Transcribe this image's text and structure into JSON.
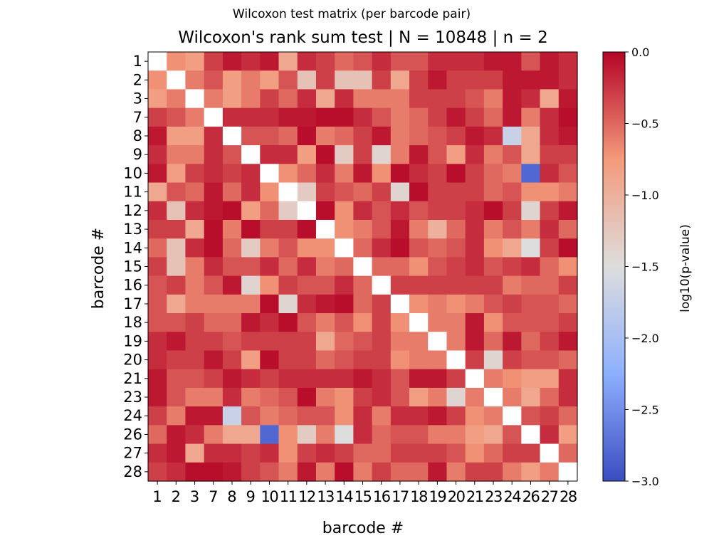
{
  "figure_title": "Wilcoxon test matrix (per barcode pair)",
  "chart_data": {
    "type": "heatmap",
    "title": "Wilcoxon's rank sum test | N = 10848 | n = 2",
    "xlabel": "barcode #",
    "ylabel": "barcode #",
    "categories": [
      "1",
      "2",
      "3",
      "7",
      "8",
      "9",
      "10",
      "11",
      "12",
      "13",
      "14",
      "15",
      "16",
      "17",
      "18",
      "19",
      "20",
      "21",
      "23",
      "24",
      "26",
      "27",
      "28"
    ],
    "colormap": "coolwarm_r",
    "value_range": [
      -3.0,
      0.0
    ],
    "colorbar": {
      "label": "log10(p-value)",
      "ticks": [
        "0.0",
        "−0.5",
        "−1.0",
        "−1.5",
        "−2.0",
        "−2.5",
        "−3.0"
      ],
      "tick_values": [
        0.0,
        -0.5,
        -1.0,
        -1.5,
        -2.0,
        -2.5,
        -3.0
      ]
    },
    "values": [
      [
        null,
        -0.7,
        -0.8,
        -0.3,
        -0.1,
        -0.2,
        -0.1,
        -0.9,
        -0.2,
        -0.3,
        -0.5,
        -0.4,
        -0.2,
        -0.4,
        -0.4,
        -0.2,
        -0.2,
        -0.2,
        -0.1,
        -0.1,
        -0.4,
        -0.1,
        -0.2
      ],
      [
        -0.7,
        null,
        -0.6,
        -0.4,
        -0.8,
        -0.6,
        -0.8,
        -0.4,
        -1.2,
        -0.3,
        -1.2,
        -1.2,
        -0.3,
        -0.9,
        -0.3,
        -0.1,
        -0.3,
        -0.3,
        -0.3,
        -0.1,
        -0.1,
        -0.1,
        -0.2
      ],
      [
        -0.8,
        -0.6,
        null,
        -0.6,
        -0.8,
        -0.6,
        -0.3,
        -0.5,
        -0.2,
        -0.9,
        -0.2,
        -0.6,
        -0.6,
        -0.6,
        -0.3,
        -0.3,
        -0.3,
        -0.4,
        -0.6,
        -0.1,
        -0.2,
        -0.9,
        -0.1
      ],
      [
        -0.3,
        -0.4,
        -0.6,
        null,
        -0.2,
        -0.2,
        -0.2,
        -0.1,
        -0.1,
        -0.05,
        -0.05,
        -0.2,
        -0.4,
        -0.6,
        -0.5,
        -0.3,
        -0.1,
        -0.3,
        -0.5,
        -0.1,
        -0.6,
        -0.2,
        -0.05
      ],
      [
        -0.1,
        -0.8,
        -0.8,
        -0.2,
        null,
        -0.4,
        -0.4,
        -0.5,
        -0.05,
        -0.6,
        -0.5,
        -0.3,
        -0.1,
        -0.6,
        -0.5,
        -0.4,
        -0.3,
        -0.1,
        -0.2,
        -1.7,
        -0.9,
        -0.2,
        -0.1
      ],
      [
        -0.2,
        -0.6,
        -0.6,
        -0.2,
        -0.4,
        null,
        -0.2,
        -0.2,
        -0.8,
        -0.05,
        -1.3,
        -0.3,
        -1.4,
        -0.6,
        -0.1,
        -0.4,
        -0.8,
        -0.2,
        -0.6,
        -0.4,
        -0.9,
        -0.3,
        -0.3
      ],
      [
        -0.1,
        -0.8,
        -0.3,
        -0.2,
        -0.3,
        -0.2,
        null,
        -0.7,
        -0.5,
        -0.2,
        -0.6,
        -0.1,
        -0.7,
        -0.05,
        -0.2,
        -0.3,
        -0.05,
        -0.3,
        -0.5,
        -0.6,
        -2.8,
        -0.2,
        -0.4
      ],
      [
        -0.9,
        -0.4,
        -0.5,
        -0.1,
        -0.5,
        -0.2,
        -0.7,
        null,
        -1.3,
        -0.3,
        -0.4,
        -0.5,
        -0.3,
        -1.4,
        -0.05,
        -0.3,
        -0.3,
        -0.3,
        -0.5,
        -0.4,
        -0.7,
        -0.7,
        -0.6
      ],
      [
        -0.2,
        -1.2,
        -0.2,
        -0.1,
        -0.05,
        -0.8,
        -0.5,
        -1.3,
        null,
        -0.05,
        -0.7,
        -0.2,
        -0.4,
        -0.2,
        -0.4,
        -0.3,
        -0.3,
        -0.2,
        -0.05,
        -0.3,
        -1.4,
        -0.3,
        -0.1
      ],
      [
        -0.3,
        -0.3,
        -0.9,
        -0.05,
        -0.6,
        -0.05,
        -0.3,
        -0.3,
        -0.05,
        null,
        -0.7,
        -0.6,
        -0.4,
        -0.1,
        -0.6,
        -1.0,
        -0.5,
        -0.2,
        -0.6,
        -0.4,
        -0.6,
        -0.2,
        -0.5
      ],
      [
        -0.5,
        -1.2,
        -0.2,
        -0.05,
        -0.5,
        -1.3,
        -0.6,
        -0.4,
        -0.7,
        -0.7,
        null,
        -0.5,
        -0.2,
        -0.05,
        -0.4,
        -0.5,
        -0.4,
        -0.2,
        -0.7,
        -0.9,
        -1.5,
        -0.3,
        -0.05
      ],
      [
        -0.3,
        -1.2,
        -0.6,
        -0.2,
        -0.4,
        -0.4,
        -0.2,
        -0.5,
        -0.2,
        -0.6,
        -0.5,
        null,
        -0.5,
        -0.5,
        -0.7,
        -0.4,
        -0.3,
        -0.2,
        -0.4,
        -0.3,
        -0.2,
        -0.5,
        -0.7
      ],
      [
        -0.4,
        -0.3,
        -0.6,
        -0.4,
        -0.1,
        -1.4,
        -0.7,
        -0.3,
        -0.4,
        -0.4,
        -0.2,
        -0.5,
        null,
        -0.3,
        -0.3,
        -0.3,
        -0.3,
        -0.3,
        -0.3,
        -0.6,
        -0.5,
        -0.5,
        -0.3
      ],
      [
        -0.4,
        -0.9,
        -0.6,
        -0.6,
        -0.6,
        -0.6,
        -0.05,
        -1.4,
        -0.2,
        -0.1,
        -0.05,
        -0.5,
        -0.3,
        null,
        -0.7,
        -0.6,
        -0.7,
        -0.6,
        -0.4,
        -0.3,
        -0.4,
        -0.4,
        -0.5
      ],
      [
        -0.4,
        -0.4,
        -0.3,
        -0.5,
        -0.5,
        -0.1,
        -0.2,
        -0.05,
        -0.4,
        -0.6,
        -0.4,
        -0.7,
        -0.3,
        -0.7,
        null,
        -0.6,
        -0.6,
        -0.1,
        -0.7,
        -0.4,
        -0.4,
        -0.4,
        -0.3
      ],
      [
        -0.2,
        -0.1,
        -0.3,
        -0.3,
        -0.4,
        -0.3,
        -0.3,
        -0.3,
        -0.3,
        -0.9,
        -0.5,
        -0.4,
        -0.3,
        -0.6,
        -0.6,
        null,
        -0.6,
        -0.1,
        -0.5,
        -0.1,
        -0.5,
        -0.3,
        -0.1
      ],
      [
        -0.2,
        -0.3,
        -0.3,
        -0.1,
        -0.3,
        -0.8,
        -0.05,
        -0.3,
        -0.3,
        -0.5,
        -0.4,
        -0.3,
        -0.3,
        -0.7,
        -0.6,
        -0.6,
        null,
        -0.3,
        -1.4,
        -0.3,
        -0.4,
        -0.4,
        -0.5
      ],
      [
        -0.1,
        -0.4,
        -0.4,
        -0.3,
        -0.1,
        -0.2,
        -0.3,
        -0.2,
        -0.2,
        -0.2,
        -0.2,
        -0.1,
        -0.2,
        -0.4,
        -0.1,
        -0.1,
        -0.3,
        null,
        -0.6,
        -0.7,
        -0.8,
        -0.8,
        -0.2
      ],
      [
        -0.1,
        -0.4,
        -0.6,
        -0.6,
        -0.2,
        -0.6,
        -0.5,
        -0.4,
        -0.05,
        -0.6,
        -0.7,
        -0.3,
        -0.2,
        -0.4,
        -0.8,
        -0.6,
        -1.4,
        -0.6,
        null,
        -0.6,
        -0.9,
        -0.5,
        -0.2
      ],
      [
        -0.3,
        -0.6,
        -0.1,
        -0.1,
        -1.7,
        -0.4,
        -0.6,
        -0.5,
        -0.4,
        -0.4,
        -0.7,
        -0.2,
        -0.6,
        -0.2,
        -0.2,
        -0.1,
        -0.3,
        -0.7,
        -0.6,
        null,
        -0.4,
        -0.3,
        -0.5
      ],
      [
        -0.5,
        -0.1,
        -0.2,
        -0.6,
        -0.9,
        -0.9,
        -2.8,
        -0.7,
        -1.3,
        -0.6,
        -1.5,
        -0.2,
        -0.5,
        -0.4,
        -0.4,
        -0.6,
        -0.6,
        -0.8,
        -0.9,
        -0.4,
        null,
        -0.2,
        -0.8
      ],
      [
        -0.2,
        -0.1,
        -0.9,
        -0.2,
        -0.2,
        -0.3,
        -0.2,
        -0.7,
        -0.3,
        -0.2,
        -0.3,
        -0.5,
        -0.5,
        -0.3,
        -0.3,
        -0.3,
        -0.4,
        -0.7,
        -0.5,
        -0.3,
        -0.3,
        null,
        -0.5
      ],
      [
        -0.3,
        -0.2,
        -0.05,
        -0.05,
        -0.1,
        -0.3,
        -0.4,
        -0.6,
        -0.1,
        -0.6,
        -0.05,
        -0.6,
        -0.3,
        -0.5,
        -0.5,
        -0.1,
        -0.6,
        -0.3,
        -0.3,
        -0.6,
        -0.8,
        -0.6,
        null
      ]
    ]
  }
}
